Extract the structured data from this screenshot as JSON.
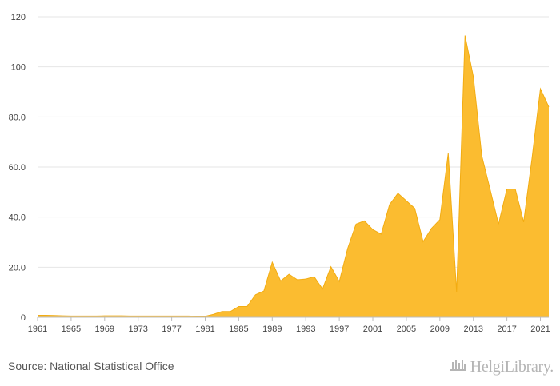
{
  "footer": {
    "source": "Source: National Statistical Office",
    "logo_text": "HelgiLibrary."
  },
  "chart_data": {
    "type": "area",
    "title": "",
    "xlabel": "",
    "ylabel": "",
    "ylim": [
      0,
      120
    ],
    "xlim": [
      1961,
      2022
    ],
    "y_ticks": [
      "0",
      "20.0",
      "40.0",
      "60.0",
      "80.0",
      "100",
      "120"
    ],
    "y_tick_values": [
      0,
      20,
      40,
      60,
      80,
      100,
      120
    ],
    "x_ticks": [
      "1961",
      "1965",
      "1969",
      "1973",
      "1977",
      "1981",
      "1985",
      "1989",
      "1993",
      "1997",
      "2001",
      "2005",
      "2009",
      "2013",
      "2017",
      "2021"
    ],
    "grid": "horizontal",
    "fill_color": "#fbbc30",
    "line_color": "#f2ac12",
    "x": [
      1961,
      1962,
      1963,
      1964,
      1965,
      1966,
      1967,
      1968,
      1969,
      1970,
      1971,
      1972,
      1973,
      1974,
      1975,
      1976,
      1977,
      1978,
      1979,
      1980,
      1981,
      1982,
      1983,
      1984,
      1985,
      1986,
      1987,
      1988,
      1989,
      1990,
      1991,
      1992,
      1993,
      1994,
      1995,
      1996,
      1997,
      1998,
      1999,
      2000,
      2001,
      2002,
      2003,
      2004,
      2005,
      2006,
      2007,
      2008,
      2009,
      2010,
      2011,
      2012,
      2013,
      2014,
      2015,
      2016,
      2017,
      2018,
      2019,
      2020,
      2021,
      2022
    ],
    "values": [
      0.8,
      0.8,
      0.7,
      0.6,
      0.5,
      0.5,
      0.5,
      0.5,
      0.6,
      0.6,
      0.6,
      0.5,
      0.5,
      0.5,
      0.5,
      0.5,
      0.5,
      0.5,
      0.5,
      0.4,
      0.4,
      1.2,
      2.3,
      2.3,
      4.3,
      4.3,
      9.0,
      10.5,
      22.0,
      14.5,
      17.2,
      15.0,
      15.3,
      16.2,
      11.3,
      20.2,
      14.3,
      27.5,
      37.2,
      38.5,
      35.0,
      33.2,
      45.0,
      49.5,
      46.5,
      43.5,
      30.2,
      35.5,
      39.0,
      65.5,
      10.0,
      112.5,
      96.0,
      64.5,
      51.0,
      37.2,
      51.2,
      51.2,
      38.0,
      63.5,
      91.2,
      84.0
    ]
  }
}
